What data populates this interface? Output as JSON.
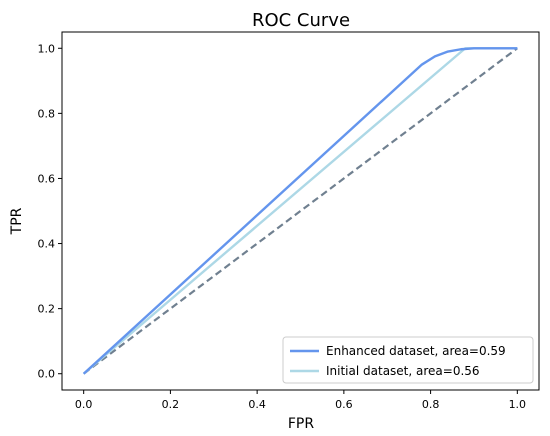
{
  "chart_data": {
    "type": "line",
    "title": "ROC Curve",
    "xlabel": "FPR",
    "ylabel": "TPR",
    "xlim": [
      -0.05,
      1.05
    ],
    "ylim": [
      -0.05,
      1.05
    ],
    "xticks": [
      0.0,
      0.2,
      0.4,
      0.6,
      0.8,
      1.0
    ],
    "xtick_labels": [
      "0.0",
      "0.2",
      "0.4",
      "0.6",
      "0.8",
      "1.0"
    ],
    "yticks": [
      0.0,
      0.2,
      0.4,
      0.6,
      0.8,
      1.0
    ],
    "ytick_labels": [
      "0.0",
      "0.2",
      "0.4",
      "0.6",
      "0.8",
      "1.0"
    ],
    "grid": false,
    "legend_position": "lower-right",
    "series": [
      {
        "name": "Enhanced dataset, area=0.59",
        "color": "#6495ed",
        "x": [
          0.0,
          0.78,
          0.81,
          0.84,
          0.87,
          0.9,
          1.0
        ],
        "y": [
          0.0,
          0.95,
          0.975,
          0.99,
          0.997,
          1.0,
          1.0
        ]
      },
      {
        "name": "Initial dataset, area=0.56",
        "color": "#add8e6",
        "x": [
          0.0,
          0.88,
          1.0
        ],
        "y": [
          0.0,
          1.0,
          1.0
        ]
      }
    ],
    "reference_line": {
      "color": "#708090",
      "style": "dashed",
      "x": [
        0.0,
        1.0
      ],
      "y": [
        0.0,
        1.0
      ]
    }
  }
}
